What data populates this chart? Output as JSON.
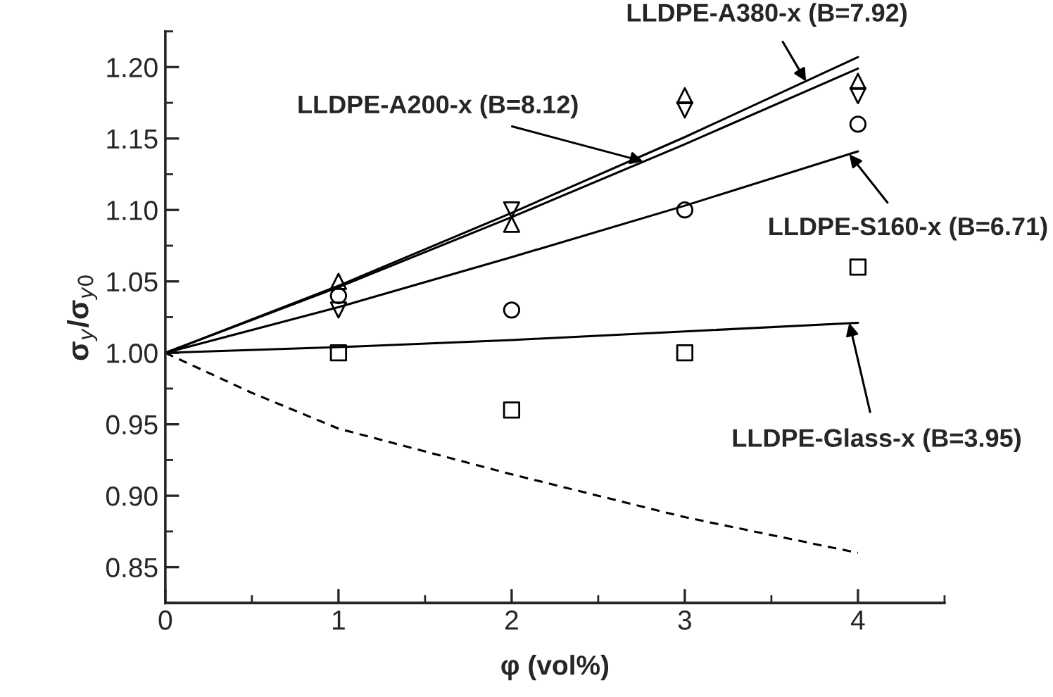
{
  "chart_data": {
    "type": "scatter",
    "xlabel": "φ (vol%)",
    "ylabel": "σ$_{y}$/σ$_{y0}$",
    "xlim": [
      0,
      4.5
    ],
    "ylim": [
      0.825,
      1.225
    ],
    "xticks": [
      0,
      1,
      2,
      3,
      4
    ],
    "yticks": [
      {
        "value": 0.85,
        "label": "0.85"
      },
      {
        "value": 0.9,
        "label": "0.90"
      },
      {
        "value": 0.95,
        "label": "0.95"
      },
      {
        "value": 1.0,
        "label": "1.00"
      },
      {
        "value": 1.05,
        "label": "1.05"
      },
      {
        "value": 1.1,
        "label": "1.10"
      },
      {
        "value": 1.15,
        "label": "1.15"
      },
      {
        "value": 1.2,
        "label": "1.20"
      }
    ],
    "grid": false,
    "legend": false,
    "series": [
      {
        "marker": "triangle",
        "color": "#000000",
        "x": [
          1,
          2,
          3,
          4
        ],
        "values": [
          1.05,
          1.09,
          1.18,
          1.19
        ]
      },
      {
        "marker": "triangle-down",
        "color": "#000000",
        "x": [
          1,
          2,
          3,
          4
        ],
        "values": [
          1.03,
          1.1,
          1.17,
          1.18
        ]
      },
      {
        "marker": "circle",
        "color": "#000000",
        "x": [
          1,
          2,
          3,
          4
        ],
        "values": [
          1.04,
          1.03,
          1.1,
          1.16
        ]
      },
      {
        "marker": "square",
        "color": "#000000",
        "x": [
          1,
          2,
          3,
          4
        ],
        "values": [
          1.0,
          0.96,
          1.0,
          1.06
        ]
      },
      {
        "type": "line",
        "line_style": "solid",
        "marker": "none",
        "color": "#000000",
        "x": [
          0,
          1,
          2,
          3,
          4
        ],
        "values": [
          1.0,
          1.047,
          1.098,
          1.151,
          1.207
        ]
      },
      {
        "type": "line",
        "line_style": "solid",
        "marker": "none",
        "color": "#000000",
        "x": [
          0,
          1,
          2,
          3,
          4
        ],
        "values": [
          1.0,
          1.046,
          1.095,
          1.146,
          1.199
        ]
      },
      {
        "type": "line",
        "line_style": "solid",
        "marker": "none",
        "color": "#000000",
        "x": [
          0,
          1,
          2,
          3,
          4
        ],
        "values": [
          1.0,
          1.032,
          1.067,
          1.103,
          1.141
        ]
      },
      {
        "type": "line",
        "line_style": "solid",
        "marker": "none",
        "color": "#000000",
        "x": [
          0,
          1,
          2,
          3,
          4
        ],
        "values": [
          1.0,
          1.004,
          1.009,
          1.015,
          1.021
        ]
      },
      {
        "type": "line",
        "line_style": "dashed",
        "marker": "none",
        "color": "#000000",
        "x": [
          0,
          0.5,
          1,
          2,
          3,
          4
        ],
        "values": [
          1.0,
          0.972,
          0.947,
          0.915,
          0.885,
          0.86
        ]
      }
    ],
    "annotations": [
      {
        "text": "LLDPE-A380-x (B=7.92)",
        "x": 3.7,
        "y": 1.19
      },
      {
        "text": "LLDPE-A200-x (B=8.12)",
        "x": 2.76,
        "y": 1.134
      },
      {
        "text": "LLDPE-S160-x (B=6.71)",
        "x": 3.95,
        "y": 1.139
      },
      {
        "text": "LLDPE-Glass-x (B=3.95)",
        "x": 3.95,
        "y": 1.021
      }
    ]
  }
}
